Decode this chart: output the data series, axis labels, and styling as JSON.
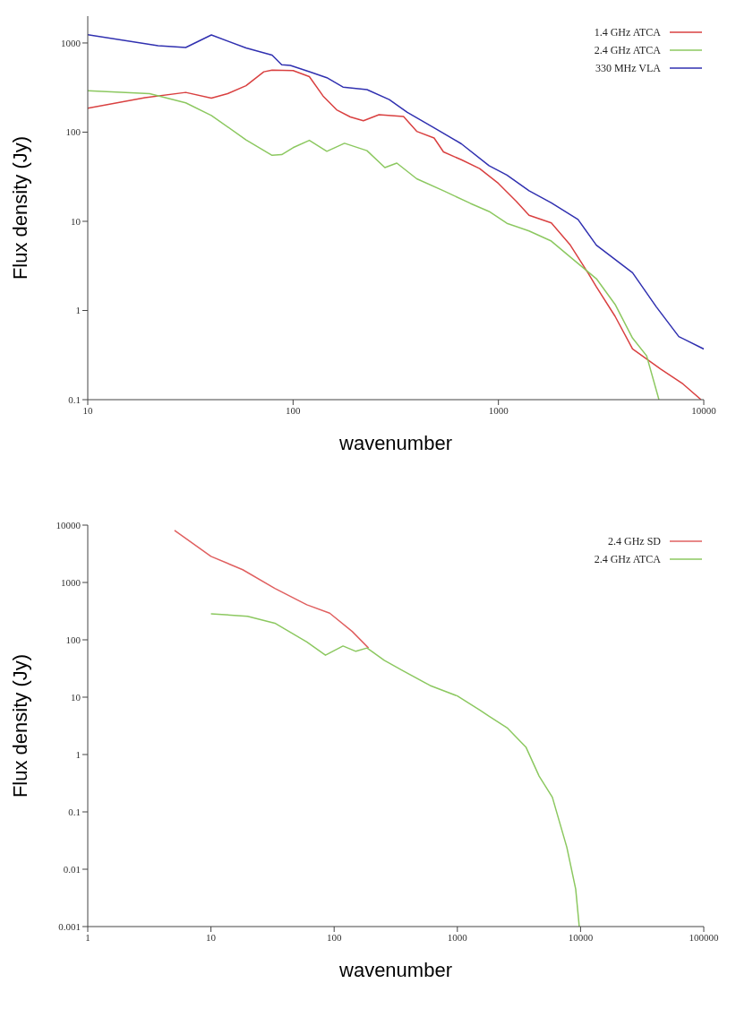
{
  "chart_data": [
    {
      "type": "line",
      "xlabel": "wavenumber",
      "ylabel": "Flux density (Jy)",
      "log": "xy",
      "xlim": [
        10,
        10000
      ],
      "xticks": [
        10,
        100,
        1000,
        10000
      ],
      "ylim": [
        0.1,
        2000
      ],
      "yticks": [
        0.1,
        1,
        10,
        100,
        1000
      ],
      "legend": "top right",
      "grid": false,
      "series": [
        {
          "name": "1.4 GHz ATCA",
          "color": "#d94040",
          "x": [
            10,
            19,
            30,
            40,
            48,
            59,
            72,
            79,
            100,
            120,
            140,
            163,
            190,
            220,
            262,
            345,
            400,
            486,
            540,
            660,
            810,
            1000,
            1220,
            1410,
            1810,
            2240,
            2740,
            3000,
            3700,
            4500,
            6170,
            7920,
            9700
          ],
          "values": [
            185,
            244,
            279,
            241,
            270,
            332,
            475,
            497,
            490,
            420,
            254,
            178,
            148,
            134,
            157,
            150,
            102,
            86,
            60,
            49,
            39,
            26.6,
            16.8,
            11.7,
            9.6,
            5.4,
            2.6,
            1.84,
            0.86,
            0.37,
            0.22,
            0.15,
            0.1
          ]
        },
        {
          "name": "2.4 GHz ATCA",
          "color": "#8cc860",
          "x": [
            10,
            20,
            30,
            40,
            59,
            79,
            88,
            100,
            120,
            146,
            178,
            229,
            280,
            320,
            400,
            540,
            730,
            900,
            1100,
            1410,
            1810,
            2240,
            3000,
            3700,
            4500,
            5270,
            6050
          ],
          "values": [
            291,
            270,
            213,
            154,
            82,
            55,
            56,
            67,
            81,
            61,
            75,
            62,
            40,
            45,
            30,
            22,
            15.9,
            12.9,
            9.5,
            7.8,
            6,
            3.97,
            2.27,
            1.17,
            0.49,
            0.31,
            0.1
          ]
        },
        {
          "name": "330 MHz VLA",
          "color": "#3030b0",
          "x": [
            10,
            22,
            30,
            40,
            59,
            79,
            88,
            97,
            120,
            146,
            175,
            229,
            294,
            360,
            486,
            660,
            900,
            1100,
            1410,
            1810,
            2440,
            3000,
            4500,
            5870,
            7560,
            10000
          ],
          "values": [
            1240,
            930,
            890,
            1230,
            880,
            730,
            570,
            560,
            476,
            408,
            320,
            300,
            232,
            167,
            112,
            74,
            42,
            33,
            22,
            16.1,
            10.5,
            5.4,
            2.65,
            1.1,
            0.51,
            0.37
          ]
        }
      ]
    },
    {
      "type": "line",
      "xlabel": "wavenumber",
      "ylabel": "Flux density (Jy)",
      "log": "xy",
      "xlim": [
        1,
        100000
      ],
      "xticks": [
        1,
        10,
        100,
        1000,
        10000,
        100000
      ],
      "ylim": [
        0.001,
        10000
      ],
      "yticks": [
        0.001,
        0.01,
        0.1,
        1,
        10,
        100,
        1000,
        10000
      ],
      "legend": "top right",
      "grid": false,
      "series": [
        {
          "name": "2.4 GHz SD",
          "color": "#e06060",
          "x": [
            5.06,
            10,
            18.1,
            33,
            60,
            92,
            140,
            190
          ],
          "values": [
            8100,
            2850,
            1670,
            790,
            408,
            292,
            140,
            72
          ]
        },
        {
          "name": "2.4 GHz ATCA",
          "color": "#8cc860",
          "x": [
            10,
            19.8,
            33,
            60,
            85,
            118,
            150,
            185,
            255,
            360,
            600,
            1000,
            1530,
            1790,
            2560,
            3600,
            4610,
            5900,
            7740,
            9130,
            9760
          ],
          "values": [
            285,
            258,
            195,
            92,
            54,
            78,
            63,
            72,
            44,
            29,
            16,
            10.5,
            5.9,
            4.7,
            2.87,
            1.35,
            0.42,
            0.18,
            0.024,
            0.0045,
            0.001
          ]
        }
      ]
    }
  ]
}
